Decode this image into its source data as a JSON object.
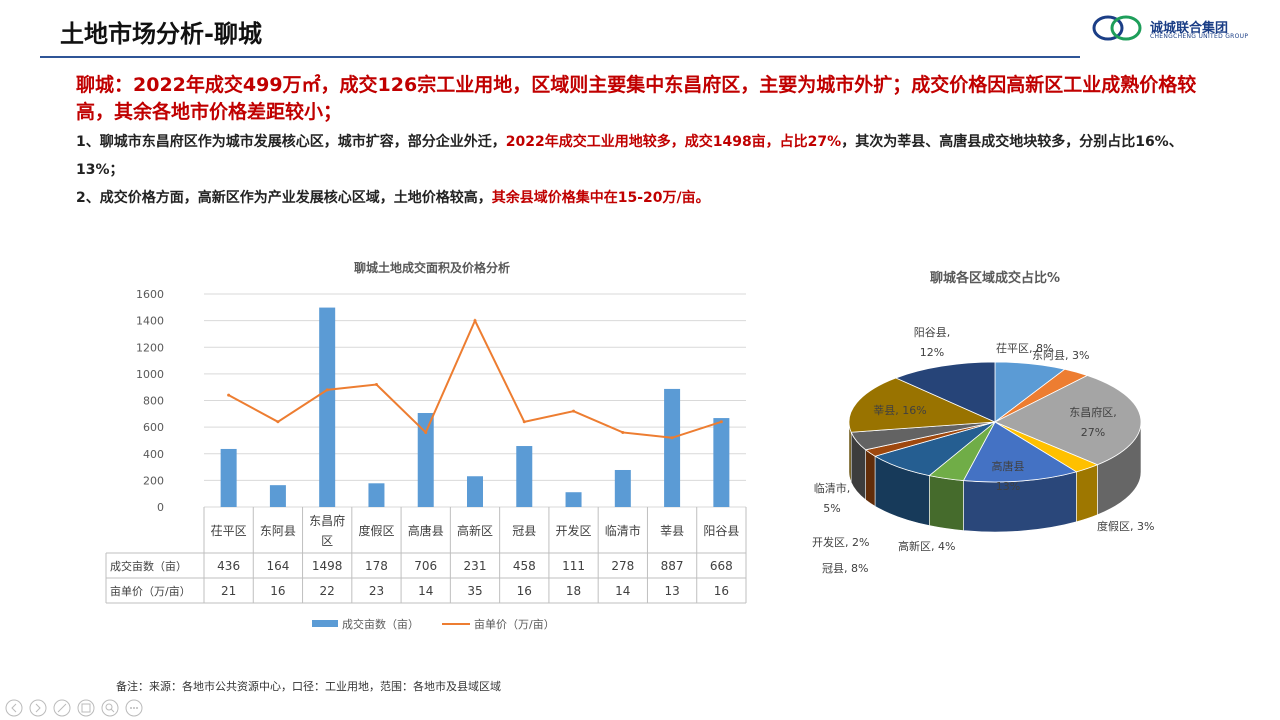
{
  "header": {
    "title": "土地市场分析-聊城",
    "logo_text": "诚城联合集团",
    "logo_sub": "CHENGCHENG UNITED GROUP"
  },
  "summary": {
    "headline": "聊城：2022年成交499万㎡，成交126宗工业用地，区域则主要集中东昌府区，主要为城市外扩；成交价格因高新区工业成熟价格较高，其余各地市价格差距较小；",
    "p1_a": "1、聊城市东昌府区作为城市发展核心区，城市扩容，部分企业外迁，",
    "p1_b": "2022年成交工业用地较多，成交1498亩，占比27%",
    "p1_c": "，其次为莘县、高唐县成交地块较多，分别占比16%、13%；",
    "p2_a": "2、成交价格方面，高新区作为产业发展核心区域，土地价格较高，",
    "p2_b": "其余县域价格集中在15-20万/亩。"
  },
  "chart_data": [
    {
      "type": "bar",
      "title": "聊城土地成交面积及价格分析",
      "categories": [
        "茌平区",
        "东阿县",
        "东昌府区",
        "度假区",
        "高唐县",
        "高新区",
        "冠县",
        "开发区",
        "临清市",
        "莘县",
        "阳谷县"
      ],
      "series": [
        {
          "name": "成交亩数（亩）",
          "type": "bar",
          "axis": "left",
          "color": "#5b9bd5",
          "values": [
            436,
            164,
            1498,
            178,
            706,
            231,
            458,
            111,
            278,
            887,
            668
          ]
        },
        {
          "name": "亩单价（万/亩）",
          "type": "line",
          "axis": "right",
          "color": "#ed7d31",
          "values": [
            21,
            16,
            22,
            23,
            14,
            35,
            16,
            18,
            14,
            13,
            16
          ]
        }
      ],
      "yleft": {
        "range": [
          0,
          1600
        ],
        "ticks": [
          "0",
          "200",
          "400",
          "600",
          "800",
          "1000",
          "1200",
          "1400",
          "1600"
        ]
      },
      "yright": {
        "range": [
          0,
          40
        ],
        "ticks": [
          "0",
          "5",
          "10",
          "15",
          "20",
          "25",
          "30",
          "35",
          "40"
        ]
      },
      "table_rows": [
        "成交亩数（亩）",
        "亩单价（万/亩）"
      ],
      "legend": "bottom",
      "grid": true
    },
    {
      "type": "pie",
      "title": "聊城各区域成交占比%",
      "slices": [
        {
          "label": "茌平区, 8%",
          "value": 8,
          "color": "#5b9bd5"
        },
        {
          "label": "东阿县, 3%",
          "value": 3,
          "color": "#ed7d31"
        },
        {
          "label": "东昌府区, 27%",
          "value": 27,
          "color": "#a5a5a5"
        },
        {
          "label": "度假区, 3%",
          "value": 3,
          "color": "#ffc000"
        },
        {
          "label": "高唐县, 13%",
          "value": 13,
          "color": "#4472c4"
        },
        {
          "label": "高新区, 4%",
          "value": 4,
          "color": "#70ad47"
        },
        {
          "label": "冠县, 8%",
          "value": 8,
          "color": "#255e91"
        },
        {
          "label": "开发区, 2%",
          "value": 2,
          "color": "#9e480e"
        },
        {
          "label": "临清市, 5%",
          "value": 5,
          "color": "#636363"
        },
        {
          "label": "莘县, 16%",
          "value": 16,
          "color": "#997300"
        },
        {
          "label": "阳谷县, 12%",
          "value": 12,
          "color": "#264478"
        }
      ]
    }
  ],
  "footer": {
    "note": "备注：来源：各地市公共资源中心，口径：工业用地，范围：各地市及县域区域"
  },
  "nav_icons": [
    "prev-icon",
    "next-icon",
    "pen-icon",
    "slides-icon",
    "zoom-icon",
    "more-icon"
  ]
}
